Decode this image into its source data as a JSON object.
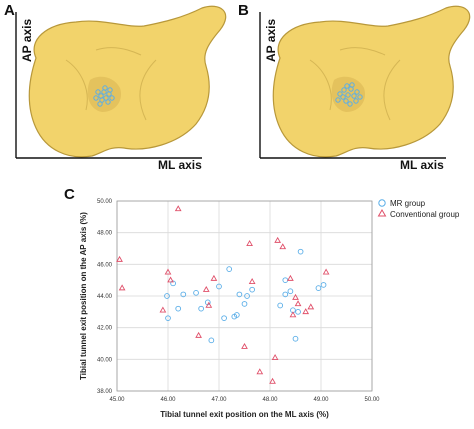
{
  "panels": {
    "a": {
      "letter": "A",
      "ap_label": "AP axis",
      "ml_label": "ML axis"
    },
    "b": {
      "letter": "B",
      "ap_label": "AP axis",
      "ml_label": "ML axis"
    },
    "c": {
      "letter": "C"
    }
  },
  "colors": {
    "bone": "#f2d36b",
    "bone_edge": "#b8983a",
    "mr_group": "#5aaee8",
    "conventional_group": "#e0506a",
    "grid": "#d9d9d9"
  },
  "chart_data": {
    "type": "scatter",
    "xlabel": "Tibial tunnel exit position on the ML axis (%)",
    "ylabel": "Tibial tunnel exit position on the AP axis (%)",
    "xlim": [
      45.0,
      50.0
    ],
    "ylim": [
      38.0,
      50.0
    ],
    "x_ticks": [
      "45.00",
      "46.00",
      "47.00",
      "48.00",
      "49.00",
      "50.00"
    ],
    "y_ticks": [
      "38.00",
      "40.00",
      "42.00",
      "44.00",
      "46.00",
      "48.00",
      "50.00"
    ],
    "grid": true,
    "legend_position": "top-right",
    "series": [
      {
        "name": "MR group",
        "marker": "circle",
        "points": [
          [
            45.98,
            44.0
          ],
          [
            46.0,
            42.6
          ],
          [
            46.1,
            44.8
          ],
          [
            46.2,
            43.2
          ],
          [
            46.3,
            44.1
          ],
          [
            46.55,
            44.2
          ],
          [
            46.65,
            43.2
          ],
          [
            46.78,
            43.6
          ],
          [
            46.85,
            41.2
          ],
          [
            47.0,
            44.6
          ],
          [
            47.1,
            42.6
          ],
          [
            47.2,
            45.7
          ],
          [
            47.3,
            42.7
          ],
          [
            47.35,
            42.8
          ],
          [
            47.4,
            44.1
          ],
          [
            47.5,
            43.5
          ],
          [
            47.55,
            44.0
          ],
          [
            47.65,
            44.4
          ],
          [
            48.2,
            43.4
          ],
          [
            48.3,
            44.1
          ],
          [
            48.3,
            45.0
          ],
          [
            48.4,
            44.3
          ],
          [
            48.45,
            43.1
          ],
          [
            48.55,
            43.0
          ],
          [
            48.5,
            41.3
          ],
          [
            48.6,
            46.8
          ],
          [
            48.95,
            44.5
          ],
          [
            49.05,
            44.7
          ]
        ]
      },
      {
        "name": "Conventional group",
        "marker": "triangle",
        "points": [
          [
            45.05,
            46.3
          ],
          [
            45.1,
            44.5
          ],
          [
            45.9,
            43.1
          ],
          [
            46.0,
            45.5
          ],
          [
            46.05,
            45.0
          ],
          [
            46.2,
            49.5
          ],
          [
            46.6,
            41.5
          ],
          [
            46.75,
            44.4
          ],
          [
            46.8,
            43.4
          ],
          [
            46.9,
            45.1
          ],
          [
            47.5,
            40.8
          ],
          [
            47.6,
            47.3
          ],
          [
            47.65,
            44.9
          ],
          [
            47.8,
            39.2
          ],
          [
            48.05,
            38.6
          ],
          [
            48.1,
            40.1
          ],
          [
            48.15,
            47.5
          ],
          [
            48.25,
            47.1
          ],
          [
            48.4,
            45.1
          ],
          [
            48.45,
            42.8
          ],
          [
            48.5,
            43.9
          ],
          [
            48.55,
            43.5
          ],
          [
            48.7,
            43.0
          ],
          [
            48.8,
            43.3
          ],
          [
            49.1,
            45.5
          ]
        ]
      }
    ]
  }
}
